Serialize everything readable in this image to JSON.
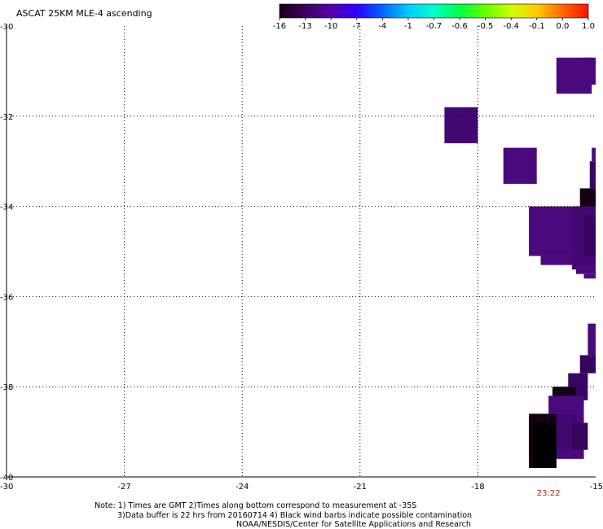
{
  "title": "ASCAT 25KM MLE-4 ascending",
  "colorbar": {
    "labels": [
      "-16",
      "-13",
      "-10",
      "-7",
      "-4",
      "-1",
      "-0.7",
      "-0.6",
      "-0.5",
      "-0.4",
      "-0.1",
      "0.0",
      "1.0"
    ],
    "colors": [
      "#1a001a",
      "#3d005e",
      "#5a00a8",
      "#2a00ff",
      "#0066ff",
      "#00ccff",
      "#00ffcc",
      "#00ff44",
      "#66ff00",
      "#ccff00",
      "#ffcc00",
      "#ff6600",
      "#ff1100"
    ]
  },
  "axes": {
    "x_ticks": [
      "-30",
      "-27",
      "-24",
      "-21",
      "-18",
      "-15"
    ],
    "x_values": [
      -30,
      -27,
      -24,
      -21,
      -18,
      -15
    ],
    "y_ticks": [
      "-30",
      "-32",
      "-34",
      "-36",
      "-38",
      "-40"
    ],
    "y_values": [
      -30,
      -32,
      -34,
      -36,
      -38,
      -40
    ],
    "x_range": [
      -30,
      -15
    ],
    "y_range": [
      -40,
      -30
    ]
  },
  "time_label": "23:22",
  "time_lon": -16.2,
  "data_cells": [
    {
      "lon0": -16.0,
      "lon1": -15.1,
      "lat0": -30.7,
      "lat1": -31.5,
      "color": "#4a0a7e"
    },
    {
      "lon0": -15.3,
      "lon1": -15.0,
      "lat0": -30.7,
      "lat1": -31.3,
      "color": "#4a0a7e"
    },
    {
      "lon0": -18.85,
      "lon1": -18.0,
      "lat0": -31.8,
      "lat1": -32.6,
      "color": "#430771"
    },
    {
      "lon0": -17.35,
      "lon1": -16.5,
      "lat0": -32.7,
      "lat1": -33.5,
      "color": "#4a0a7e"
    },
    {
      "lon0": -15.1,
      "lon1": -15.0,
      "lat0": -32.7,
      "lat1": -33.0,
      "color": "#4a0a7e"
    },
    {
      "lon0": -15.15,
      "lon1": -15.0,
      "lat0": -33.0,
      "lat1": -33.6,
      "color": "#3a0665"
    },
    {
      "lon0": -15.4,
      "lon1": -15.0,
      "lat0": -33.6,
      "lat1": -34.0,
      "color": "#150014"
    },
    {
      "lon0": -16.7,
      "lon1": -15.0,
      "lat0": -34.0,
      "lat1": -35.1,
      "color": "#4a0a7e"
    },
    {
      "lon0": -16.4,
      "lon1": -15.0,
      "lat0": -35.1,
      "lat1": -35.3,
      "color": "#4a0a7e"
    },
    {
      "lon0": -15.6,
      "lon1": -15.0,
      "lat0": -34.0,
      "lat1": -35.4,
      "color": "#430771"
    },
    {
      "lon0": -15.3,
      "lon1": -15.0,
      "lat0": -34.2,
      "lat1": -35.1,
      "color": "#36065c"
    },
    {
      "lon0": -15.5,
      "lon1": -15.0,
      "lat0": -35.3,
      "lat1": -35.5,
      "color": "#4a0a7e"
    },
    {
      "lon0": -15.3,
      "lon1": -15.0,
      "lat0": -35.5,
      "lat1": -35.6,
      "color": "#4a0a7e"
    },
    {
      "lon0": -15.2,
      "lon1": -15.0,
      "lat0": -36.6,
      "lat1": -37.3,
      "color": "#4a0a7e"
    },
    {
      "lon0": -15.4,
      "lon1": -15.0,
      "lat0": -37.3,
      "lat1": -37.7,
      "color": "#36065c"
    },
    {
      "lon0": -15.7,
      "lon1": -15.2,
      "lat0": -37.7,
      "lat1": -38.3,
      "color": "#3a0665"
    },
    {
      "lon0": -16.1,
      "lon1": -15.5,
      "lat0": -38.0,
      "lat1": -38.4,
      "color": "#150014"
    },
    {
      "lon0": -16.2,
      "lon1": -15.3,
      "lat0": -38.2,
      "lat1": -38.6,
      "color": "#4a0a7e"
    },
    {
      "lon0": -16.7,
      "lon1": -15.3,
      "lat0": -38.6,
      "lat1": -39.6,
      "color": "#4a0a7e"
    },
    {
      "lon0": -16.7,
      "lon1": -16.0,
      "lat0": -38.6,
      "lat1": -39.8,
      "color": "#150014"
    },
    {
      "lon0": -16.6,
      "lon1": -16.0,
      "lat0": -38.8,
      "lat1": -39.8,
      "color": "#000000"
    },
    {
      "lon0": -16.0,
      "lon1": -15.5,
      "lat0": -38.6,
      "lat1": -39.4,
      "color": "#430771"
    },
    {
      "lon0": -15.6,
      "lon1": -15.2,
      "lat0": -38.8,
      "lat1": -39.4,
      "color": "#36065c"
    }
  ],
  "notes": [
    "Note: 1) Times are GMT 2)Times along bottom correspond to measurement at -35S",
    "3)Data buffer is 22 hrs from 20160714 4) Black wind barbs indicate possible contamination",
    "NOAA/NESDIS/Center for Satellite Applications and Research"
  ]
}
